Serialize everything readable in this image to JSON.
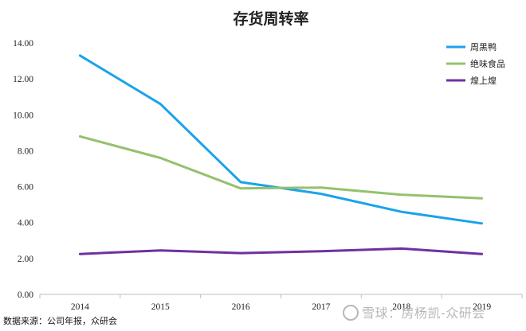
{
  "chart_data": {
    "type": "line",
    "title": "存货周转率",
    "categories": [
      "2014",
      "2015",
      "2016",
      "2017",
      "2018",
      "2019"
    ],
    "ylim": [
      0,
      14
    ],
    "yticks": [
      "0.00",
      "2.00",
      "4.00",
      "6.00",
      "8.00",
      "10.00",
      "12.00",
      "14.00"
    ],
    "series": [
      {
        "name": "周黑鸭",
        "color": "#1aa3ea",
        "values": [
          13.3,
          10.6,
          6.25,
          5.6,
          4.6,
          3.95
        ]
      },
      {
        "name": "绝味食品",
        "color": "#94c16e",
        "values": [
          8.8,
          7.6,
          5.9,
          5.95,
          5.55,
          5.35
        ]
      },
      {
        "name": "煌上煌",
        "color": "#7030a0",
        "values": [
          2.25,
          2.45,
          2.3,
          2.4,
          2.55,
          2.25
        ]
      }
    ],
    "legend_position": "top-right",
    "grid": false
  },
  "footer": {
    "source": "数据来源：公司年报，众研会",
    "watermark": "雪球：房杨凯-众研会"
  }
}
